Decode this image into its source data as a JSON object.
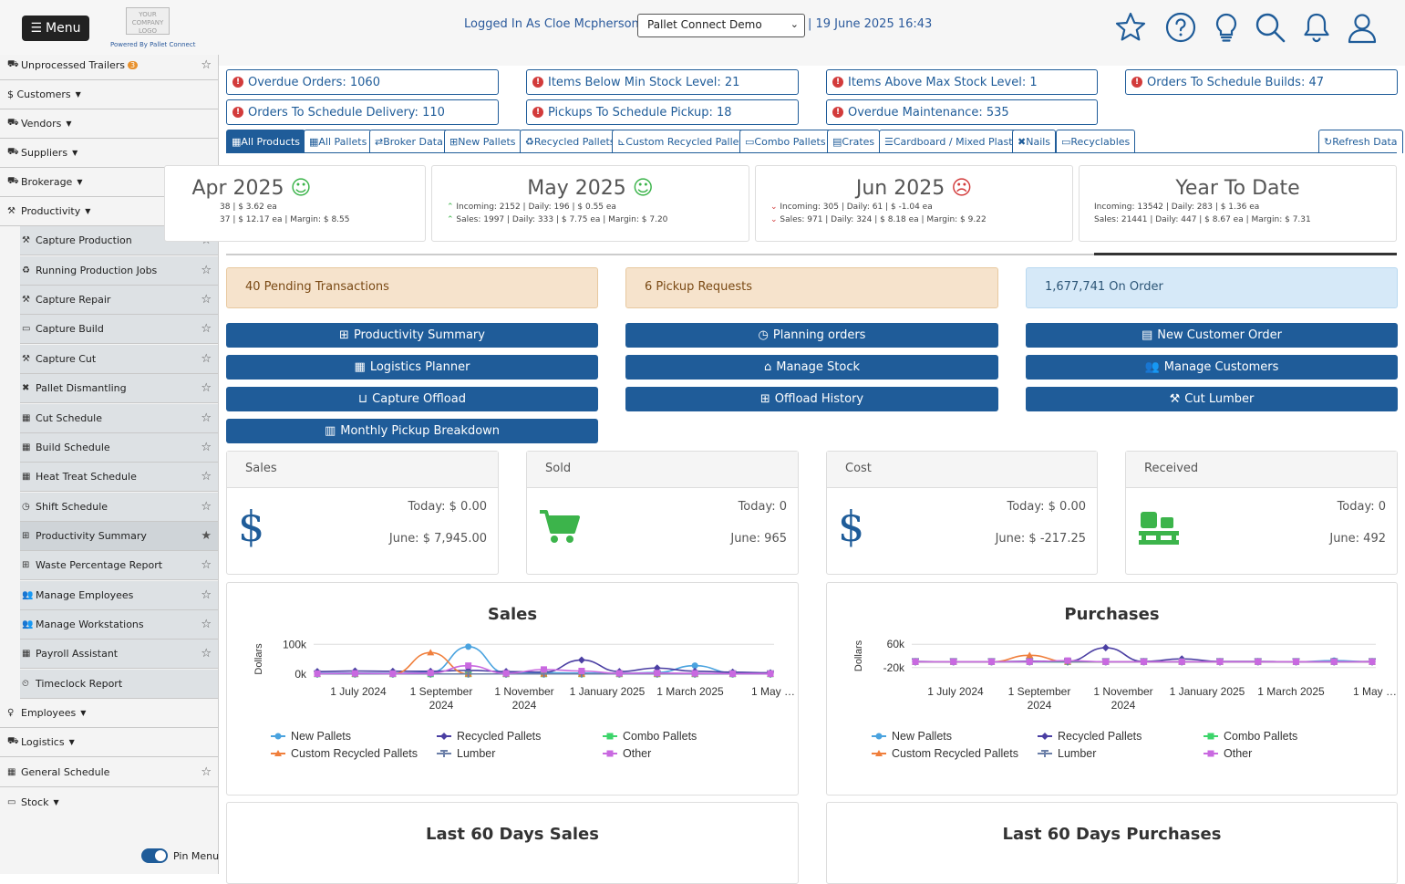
{
  "header": {
    "menu_label": "Menu",
    "logo_text": "YOUR COMPANY LOGO",
    "powered_by": "Powered By Pallet Connect",
    "logged_in": "Logged In As Cloe Mcpherson  |",
    "company_select": "Pallet Connect Demo",
    "datetime": "| 19 June 2025 16:43"
  },
  "sidebar": {
    "items": [
      {
        "label": "Unprocessed Trailers",
        "badge": "3"
      },
      {
        "label": "$ Customers"
      },
      {
        "label": "Vendors"
      },
      {
        "label": "Suppliers"
      },
      {
        "label": "Brokerage"
      },
      {
        "label": "Productivity"
      },
      {
        "label": "Capture Production"
      },
      {
        "label": "Running Production Jobs"
      },
      {
        "label": "Capture Repair"
      },
      {
        "label": "Capture Build"
      },
      {
        "label": "Capture Cut"
      },
      {
        "label": "Pallet Dismantling"
      },
      {
        "label": "Cut Schedule"
      },
      {
        "label": "Build Schedule"
      },
      {
        "label": "Heat Treat Schedule"
      },
      {
        "label": "Shift Schedule"
      },
      {
        "label": "Productivity Summary"
      },
      {
        "label": "Waste Percentage Report"
      },
      {
        "label": "Manage Employees"
      },
      {
        "label": "Manage Workstations"
      },
      {
        "label": "Payroll Assistant"
      },
      {
        "label": "Timeclock Report"
      },
      {
        "label": "Employees"
      },
      {
        "label": "Logistics"
      },
      {
        "label": "General Schedule"
      },
      {
        "label": "Stock"
      }
    ],
    "pin_label": "Pin Menu"
  },
  "alerts": [
    "Overdue Orders: 1060",
    "Items Below Min Stock Level: 21",
    "Items Above Max Stock Level: 1",
    "Orders To Schedule Builds: 47",
    "Orders To Schedule Delivery: 110",
    "Pickups To Schedule Pickup: 18",
    "Overdue Maintenance: 535"
  ],
  "tabs": [
    "All Products",
    "All Pallets",
    "Broker Data",
    "New Pallets",
    "Recycled Pallets",
    "Custom Recycled Pallets",
    "Combo Pallets",
    "Crates",
    "Cardboard / Mixed Plastic",
    "Nails",
    "Recyclables",
    "Refresh Data"
  ],
  "months": [
    {
      "title": "Apr 2025",
      "line1": "38 | $ 3.62 ea",
      "line2": "37 | $ 12.17 ea | Margin: $ 8.55",
      "mood": "happy"
    },
    {
      "title": "May 2025",
      "line1": "Incoming: 2152 | Daily: 196 | $ 0.55 ea",
      "line2": "Sales: 1997 | Daily: 333 | $ 7.75 ea | Margin: $ 7.20",
      "mood": "happy"
    },
    {
      "title": "Jun 2025",
      "line1": "Incoming: 305 | Daily: 61 | $ -1.04 ea",
      "line2": "Sales: 971 | Daily: 324 | $ 8.18 ea | Margin: $ 9.22",
      "mood": "sad"
    },
    {
      "title": "Year To Date",
      "line1": "Incoming: 13542 | Daily: 283 | $ 1.36 ea",
      "line2": "Sales: 21441 | Daily: 447 | $ 8.67 ea | Margin: $ 7.31"
    }
  ],
  "info": {
    "pending": "40 Pending Transactions",
    "pickups": "6 Pickup Requests",
    "on_order": "1,677,741 On Order"
  },
  "buttons": [
    "Productivity Summary",
    "Planning orders",
    "New Customer Order",
    "Logistics Planner",
    "Manage Stock",
    "Manage Customers",
    "Capture Offload",
    "Offload History",
    "Cut Lumber",
    "Monthly Pickup Breakdown"
  ],
  "stats": [
    {
      "title": "Sales",
      "today": "Today: $ 0.00",
      "month": "June: $ 7,945.00",
      "icon": "dollar-icon"
    },
    {
      "title": "Sold",
      "today": "Today: 0",
      "month": "June: 965",
      "icon": "cart-icon"
    },
    {
      "title": "Cost",
      "today": "Today: $ 0.00",
      "month": "June: $ -217.25",
      "icon": "dollar-icon"
    },
    {
      "title": "Received",
      "today": "Today: 0",
      "month": "June: 492",
      "icon": "pallet-icon"
    }
  ],
  "colors": {
    "primary": "#1f5c99",
    "alert": "#d23b3b",
    "pending_bg": "#f6e3cc",
    "order_bg": "#d6e9f8",
    "icon_green": "#3cb44b"
  },
  "chart_data": [
    {
      "type": "line",
      "title": "Sales",
      "ylabel": "Dollars",
      "yticks": [
        "100k",
        "0k"
      ],
      "xticks": [
        "1 July 2024",
        "1 September 2024",
        "1 November 2024",
        "1 January 2025",
        "1 March 2025",
        "1 May …"
      ],
      "x": [
        "2024-06",
        "2024-07",
        "2024-08",
        "2024-09",
        "2024-10",
        "2024-11",
        "2024-12",
        "2025-01",
        "2025-02",
        "2025-03",
        "2025-04",
        "2025-05",
        "2025-06"
      ],
      "ylim": [
        -10000,
        110000
      ],
      "series": [
        {
          "name": "New Pallets",
          "color": "#4aa3df",
          "values": [
            2000,
            3000,
            2000,
            5000,
            92000,
            3000,
            4000,
            3000,
            2000,
            5000,
            28000,
            4000,
            2000
          ]
        },
        {
          "name": "Recycled Pallets",
          "color": "#4b3fa3",
          "values": [
            8000,
            10000,
            9000,
            9000,
            12000,
            8000,
            6000,
            47000,
            8000,
            20000,
            9000,
            6000,
            4000
          ]
        },
        {
          "name": "Combo Pallets",
          "color": "#3cd46a",
          "values": [
            0,
            0,
            0,
            0,
            0,
            0,
            0,
            0,
            0,
            0,
            0,
            0,
            0
          ]
        },
        {
          "name": "Custom Recycled Pallets",
          "color": "#f07f3c",
          "values": [
            0,
            0,
            0,
            72000,
            0,
            0,
            0,
            0,
            0,
            0,
            0,
            0,
            0
          ]
        },
        {
          "name": "Lumber",
          "color": "#6b7fa8",
          "values": [
            0,
            0,
            0,
            0,
            0,
            0,
            0,
            0,
            0,
            0,
            0,
            0,
            0
          ]
        },
        {
          "name": "Other",
          "color": "#c969e0",
          "values": [
            1000,
            2000,
            1000,
            3000,
            28000,
            2000,
            15000,
            10000,
            2000,
            3000,
            2000,
            1000,
            1000
          ]
        }
      ]
    },
    {
      "type": "line",
      "title": "Purchases",
      "ylabel": "Dollars",
      "yticks": [
        "60k",
        "-20k"
      ],
      "xticks": [
        "1 July 2024",
        "1 September 2024",
        "1 November 2024",
        "1 January 2025",
        "1 March 2025",
        "1 May …"
      ],
      "x": [
        "2024-06",
        "2024-07",
        "2024-08",
        "2024-09",
        "2024-10",
        "2024-11",
        "2024-12",
        "2025-01",
        "2025-02",
        "2025-03",
        "2025-04",
        "2025-05",
        "2025-06"
      ],
      "ylim": [
        -30000,
        70000
      ],
      "series": [
        {
          "name": "New Pallets",
          "color": "#4aa3df",
          "values": [
            0,
            0,
            0,
            0,
            0,
            0,
            0,
            0,
            0,
            0,
            0,
            4000,
            0
          ]
        },
        {
          "name": "Recycled Pallets",
          "color": "#4b3fa3",
          "values": [
            1000,
            0,
            0,
            2000,
            2000,
            48000,
            1000,
            10000,
            1000,
            1000,
            0,
            0,
            1000
          ]
        },
        {
          "name": "Combo Pallets",
          "color": "#3cd46a",
          "values": [
            0,
            0,
            0,
            0,
            0,
            0,
            0,
            0,
            0,
            0,
            0,
            0,
            0
          ]
        },
        {
          "name": "Custom Recycled Pallets",
          "color": "#f07f3c",
          "values": [
            0,
            0,
            0,
            22000,
            0,
            0,
            0,
            0,
            0,
            0,
            0,
            0,
            0
          ]
        },
        {
          "name": "Lumber",
          "color": "#6b7fa8",
          "values": [
            0,
            0,
            0,
            0,
            0,
            0,
            0,
            0,
            0,
            0,
            0,
            0,
            0
          ]
        },
        {
          "name": "Other",
          "color": "#c969e0",
          "values": [
            0,
            0,
            0,
            0,
            4000,
            0,
            0,
            0,
            0,
            0,
            0,
            0,
            0
          ]
        }
      ]
    }
  ],
  "bottom_charts": [
    "Last 60 Days Sales",
    "Last 60 Days Purchases"
  ]
}
